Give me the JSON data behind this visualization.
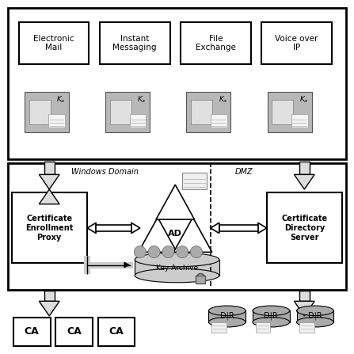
{
  "title": "",
  "background": "#ffffff",
  "top_box_labels": [
    "Electronic\nMail",
    "Instant\nMessaging",
    "File\nExchange",
    "Voice over\nIP"
  ],
  "cert_enrollment_label": "Certificate\nEnrollment\nProxy",
  "cert_directory_label": "Certificate\nDirectory\nServer",
  "key_archive_label": "Key Archive",
  "ad_label": "AD",
  "windows_domain_label": "Windows Domain",
  "dmz_label": "DMZ",
  "ca_labels": [
    "CA",
    "CA",
    "CA"
  ],
  "dir_labels": [
    "D|R",
    "D|R",
    "D|R"
  ]
}
